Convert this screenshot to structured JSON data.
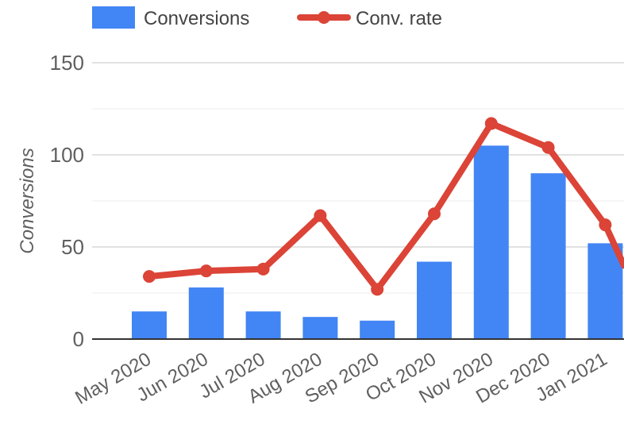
{
  "chart_data": {
    "type": "bar",
    "categories": [
      "May 2020",
      "Jun 2020",
      "Jul 2020",
      "Aug 2020",
      "Sep 2020",
      "Oct 2020",
      "Nov 2020",
      "Dec 2020",
      "Jan 2021"
    ],
    "series": [
      {
        "name": "Conversions",
        "type": "bar",
        "color": "#4285f4",
        "values": [
          15,
          28,
          15,
          12,
          10,
          42,
          105,
          90,
          52
        ]
      },
      {
        "name": "Conv. rate",
        "type": "line",
        "color": "#db4437",
        "values": [
          34,
          37,
          38,
          67,
          27,
          68,
          117,
          104,
          62
        ]
      }
    ],
    "xlabel": "",
    "ylabel": "Conversions",
    "ylim": [
      0,
      150
    ],
    "yticks": [
      "0",
      "50",
      "100",
      "150"
    ],
    "grid": true,
    "legend": "top-left"
  }
}
